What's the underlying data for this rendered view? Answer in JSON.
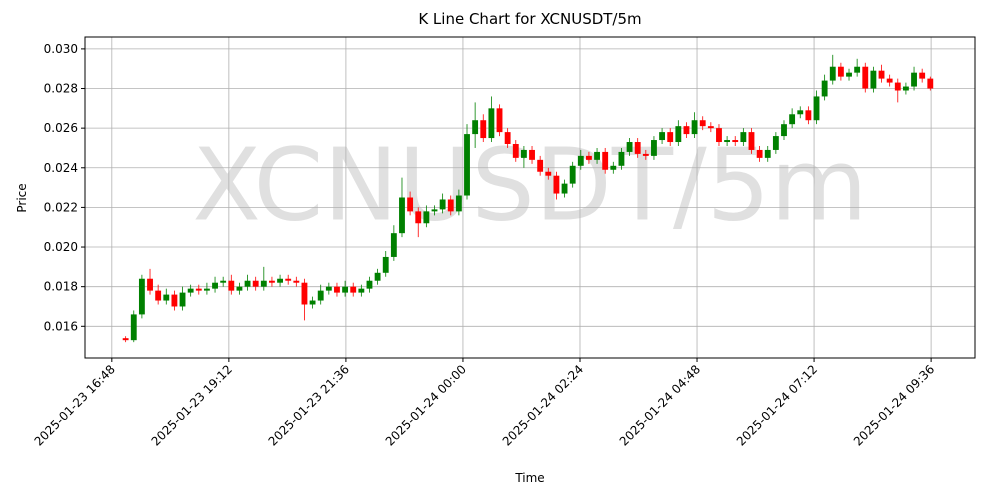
{
  "chart_data": {
    "type": "candlestick",
    "title": "K Line Chart for XCNUSDT/5m",
    "watermark": "XCNUSDT/5m",
    "x_label": "Time",
    "y_label": "Price",
    "x": [
      "2025-01-23 17:05",
      "2025-01-23 17:15",
      "2025-01-23 17:25",
      "2025-01-23 17:35",
      "2025-01-23 17:45",
      "2025-01-23 17:55",
      "2025-01-23 18:05",
      "2025-01-23 18:15",
      "2025-01-23 18:25",
      "2025-01-23 18:35",
      "2025-01-23 18:45",
      "2025-01-23 18:55",
      "2025-01-23 19:05",
      "2025-01-23 19:15",
      "2025-01-23 19:25",
      "2025-01-23 19:35",
      "2025-01-23 19:45",
      "2025-01-23 19:55",
      "2025-01-23 20:05",
      "2025-01-23 20:15",
      "2025-01-23 20:25",
      "2025-01-23 20:35",
      "2025-01-23 20:45",
      "2025-01-23 20:55",
      "2025-01-23 21:05",
      "2025-01-23 21:15",
      "2025-01-23 21:25",
      "2025-01-23 21:35",
      "2025-01-23 21:45",
      "2025-01-23 21:55",
      "2025-01-23 22:05",
      "2025-01-23 22:15",
      "2025-01-23 22:25",
      "2025-01-23 22:35",
      "2025-01-23 22:45",
      "2025-01-23 22:55",
      "2025-01-23 23:05",
      "2025-01-23 23:15",
      "2025-01-23 23:25",
      "2025-01-23 23:35",
      "2025-01-23 23:45",
      "2025-01-23 23:55",
      "2025-01-24 00:05",
      "2025-01-24 00:15",
      "2025-01-24 00:25",
      "2025-01-24 00:35",
      "2025-01-24 00:45",
      "2025-01-24 00:55",
      "2025-01-24 01:05",
      "2025-01-24 01:15",
      "2025-01-24 01:25",
      "2025-01-24 01:35",
      "2025-01-24 01:45",
      "2025-01-24 01:55",
      "2025-01-24 02:05",
      "2025-01-24 02:15",
      "2025-01-24 02:25",
      "2025-01-24 02:35",
      "2025-01-24 02:45",
      "2025-01-24 02:55",
      "2025-01-24 03:05",
      "2025-01-24 03:15",
      "2025-01-24 03:25",
      "2025-01-24 03:35",
      "2025-01-24 03:45",
      "2025-01-24 03:55",
      "2025-01-24 04:05",
      "2025-01-24 04:15",
      "2025-01-24 04:25",
      "2025-01-24 04:35",
      "2025-01-24 04:45",
      "2025-01-24 04:55",
      "2025-01-24 05:05",
      "2025-01-24 05:15",
      "2025-01-24 05:25",
      "2025-01-24 05:35",
      "2025-01-24 05:45",
      "2025-01-24 05:55",
      "2025-01-24 06:05",
      "2025-01-24 06:15",
      "2025-01-24 06:25",
      "2025-01-24 06:35",
      "2025-01-24 06:45",
      "2025-01-24 06:55",
      "2025-01-24 07:05",
      "2025-01-24 07:15",
      "2025-01-24 07:25",
      "2025-01-24 07:35",
      "2025-01-24 07:45",
      "2025-01-24 07:55",
      "2025-01-24 08:05",
      "2025-01-24 08:15",
      "2025-01-24 08:25",
      "2025-01-24 08:35",
      "2025-01-24 08:45",
      "2025-01-24 08:55",
      "2025-01-24 09:05",
      "2025-01-24 09:15",
      "2025-01-24 09:25",
      "2025-01-24 09:35"
    ],
    "open": [
      0.0154,
      0.0153,
      0.0166,
      0.0184,
      0.0178,
      0.0173,
      0.0176,
      0.017,
      0.0177,
      0.0179,
      0.0178,
      0.0179,
      0.0182,
      0.0183,
      0.0178,
      0.018,
      0.0183,
      0.018,
      0.0183,
      0.0182,
      0.0184,
      0.0183,
      0.0182,
      0.0171,
      0.0173,
      0.0178,
      0.018,
      0.0177,
      0.018,
      0.0177,
      0.0179,
      0.0183,
      0.0187,
      0.0195,
      0.0207,
      0.0225,
      0.0218,
      0.0212,
      0.0218,
      0.0219,
      0.0224,
      0.0218,
      0.0226,
      0.0257,
      0.0264,
      0.0255,
      0.027,
      0.0258,
      0.0252,
      0.0245,
      0.0249,
      0.0244,
      0.0238,
      0.0236,
      0.0227,
      0.0232,
      0.0241,
      0.0246,
      0.0244,
      0.0248,
      0.0239,
      0.0241,
      0.0248,
      0.0253,
      0.0247,
      0.0246,
      0.0254,
      0.0258,
      0.0253,
      0.0261,
      0.0257,
      0.0264,
      0.0261,
      0.026,
      0.0253,
      0.0254,
      0.0253,
      0.0258,
      0.0249,
      0.0245,
      0.0249,
      0.0256,
      0.0262,
      0.0267,
      0.0269,
      0.0264,
      0.0276,
      0.0284,
      0.0291,
      0.0286,
      0.0288,
      0.0291,
      0.028,
      0.0289,
      0.0285,
      0.0283,
      0.0279,
      0.0281,
      0.0288,
      0.0285
    ],
    "high": [
      0.0155,
      0.0168,
      0.0186,
      0.0189,
      0.0181,
      0.0179,
      0.0178,
      0.018,
      0.0181,
      0.0181,
      0.0182,
      0.0185,
      0.0185,
      0.0186,
      0.0182,
      0.0186,
      0.0185,
      0.019,
      0.0185,
      0.0186,
      0.0186,
      0.0185,
      0.0184,
      0.0175,
      0.0181,
      0.0182,
      0.0182,
      0.0183,
      0.0182,
      0.0181,
      0.0185,
      0.0189,
      0.0198,
      0.0211,
      0.0235,
      0.0228,
      0.022,
      0.0221,
      0.0221,
      0.0227,
      0.0226,
      0.0229,
      0.0262,
      0.0273,
      0.0267,
      0.0276,
      0.0272,
      0.026,
      0.0254,
      0.0251,
      0.0251,
      0.0246,
      0.024,
      0.0238,
      0.0234,
      0.0243,
      0.0249,
      0.0248,
      0.025,
      0.025,
      0.0243,
      0.025,
      0.0255,
      0.0255,
      0.0249,
      0.0256,
      0.026,
      0.026,
      0.0264,
      0.0263,
      0.0268,
      0.0266,
      0.0263,
      0.0262,
      0.0256,
      0.0256,
      0.026,
      0.026,
      0.0251,
      0.0251,
      0.0258,
      0.0264,
      0.027,
      0.0271,
      0.0271,
      0.0279,
      0.0287,
      0.0297,
      0.0293,
      0.029,
      0.0295,
      0.0293,
      0.0291,
      0.0292,
      0.0287,
      0.0285,
      0.0283,
      0.0291,
      0.029,
      0.0286
    ],
    "low": [
      0.0152,
      0.0152,
      0.0164,
      0.0176,
      0.0171,
      0.0171,
      0.0168,
      0.0168,
      0.0175,
      0.0176,
      0.0176,
      0.0177,
      0.018,
      0.0176,
      0.0176,
      0.0178,
      0.0178,
      0.0178,
      0.018,
      0.018,
      0.0181,
      0.018,
      0.0163,
      0.0169,
      0.0171,
      0.0176,
      0.0175,
      0.0175,
      0.0175,
      0.0175,
      0.0177,
      0.0181,
      0.0185,
      0.0193,
      0.0205,
      0.0216,
      0.0205,
      0.021,
      0.0216,
      0.0217,
      0.0216,
      0.0216,
      0.0224,
      0.025,
      0.0253,
      0.0253,
      0.0256,
      0.025,
      0.0243,
      0.024,
      0.0242,
      0.0236,
      0.0234,
      0.0224,
      0.0225,
      0.023,
      0.0239,
      0.0242,
      0.0242,
      0.0237,
      0.0237,
      0.0239,
      0.0246,
      0.0245,
      0.0244,
      0.0244,
      0.0252,
      0.0251,
      0.0251,
      0.0255,
      0.0255,
      0.0259,
      0.0258,
      0.0251,
      0.0251,
      0.0251,
      0.0251,
      0.0247,
      0.0243,
      0.0243,
      0.0247,
      0.0254,
      0.026,
      0.0265,
      0.0262,
      0.0262,
      0.0274,
      0.0282,
      0.0284,
      0.0284,
      0.0286,
      0.0278,
      0.0278,
      0.0283,
      0.0281,
      0.0273,
      0.0277,
      0.0279,
      0.0283,
      0.0279
    ],
    "close": [
      0.0153,
      0.0166,
      0.0184,
      0.0178,
      0.0173,
      0.0176,
      0.017,
      0.0177,
      0.0179,
      0.0178,
      0.0179,
      0.0182,
      0.0183,
      0.0178,
      0.018,
      0.0183,
      0.018,
      0.0183,
      0.0182,
      0.0184,
      0.0183,
      0.0182,
      0.0171,
      0.0173,
      0.0178,
      0.018,
      0.0177,
      0.018,
      0.0177,
      0.0179,
      0.0183,
      0.0187,
      0.0195,
      0.0207,
      0.0225,
      0.0218,
      0.0212,
      0.0218,
      0.0219,
      0.0224,
      0.0218,
      0.0226,
      0.0257,
      0.0264,
      0.0255,
      0.027,
      0.0258,
      0.0252,
      0.0245,
      0.0249,
      0.0244,
      0.0238,
      0.0236,
      0.0227,
      0.0232,
      0.0241,
      0.0246,
      0.0244,
      0.0248,
      0.0239,
      0.0241,
      0.0248,
      0.0253,
      0.0247,
      0.0246,
      0.0254,
      0.0258,
      0.0253,
      0.0261,
      0.0257,
      0.0264,
      0.0261,
      0.026,
      0.0253,
      0.0254,
      0.0253,
      0.0258,
      0.0249,
      0.0245,
      0.0249,
      0.0256,
      0.0262,
      0.0267,
      0.0269,
      0.0264,
      0.0276,
      0.0284,
      0.0291,
      0.0286,
      0.0288,
      0.0291,
      0.028,
      0.0289,
      0.0285,
      0.0283,
      0.0279,
      0.0281,
      0.0288,
      0.0285,
      0.028
    ],
    "up_color": "#008000",
    "down_color": "#ff0000",
    "xlim": [
      "2025-01-23 16:15",
      "2025-01-24 10:30"
    ],
    "xticks": [
      "2025-01-23 16:48",
      "2025-01-23 19:12",
      "2025-01-23 21:36",
      "2025-01-24 00:00",
      "2025-01-24 02:24",
      "2025-01-24 04:48",
      "2025-01-24 07:12",
      "2025-01-24 09:36"
    ],
    "ylim": [
      0.0144,
      0.0306
    ],
    "yticks": [
      0.016,
      0.018,
      {
        "value": 0.02,
        "label": "0.020"
      },
      0.022,
      0.024,
      0.026,
      0.028,
      {
        "value": 0.03,
        "label": "0.030"
      }
    ],
    "grid": true
  }
}
